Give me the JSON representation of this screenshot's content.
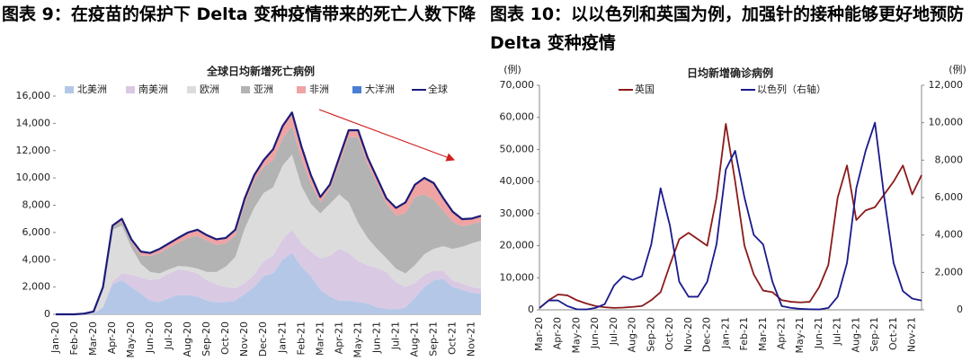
{
  "chart_data": [
    {
      "type": "stacked_area",
      "heading": "图表 9：在疫苗的保护下 Delta 变种疫情带来的死亡人数下降",
      "title": "全球日均新增死亡病例",
      "categories": [
        "Jan-20",
        null,
        "Feb-20",
        null,
        "Mar-20",
        null,
        "Apr-20",
        null,
        "May-20",
        null,
        "Jun-20",
        null,
        "Jul-20",
        null,
        "Aug-20",
        null,
        "Sep-20",
        null,
        "Oct-20",
        null,
        "Nov-20",
        null,
        "Dec-20",
        null,
        "Jan-21",
        null,
        "Feb-21",
        null,
        "Mar-21",
        null,
        "Apr-21",
        null,
        "May-21",
        null,
        "Jun-21",
        null,
        "Jul-21",
        null,
        "Aug-21",
        null,
        "Sep-21",
        null,
        "Oct-21",
        null,
        "Nov-21",
        null
      ],
      "ylim": [
        0,
        16000
      ],
      "yticks": [
        0,
        {
          "value": 2000,
          "label": "2,000"
        },
        {
          "value": 4000,
          "label": "4,000"
        },
        {
          "value": 6000,
          "label": "6,000"
        },
        {
          "value": 8000,
          "label": "8,000"
        },
        {
          "value": 10000,
          "label": "10,000"
        },
        {
          "value": 12000,
          "label": "12,000"
        },
        {
          "value": 14000,
          "label": "14,000"
        },
        {
          "value": 16000,
          "label": "16,000"
        }
      ],
      "series": [
        {
          "name": "北美洲",
          "kind": "area",
          "color": "#b4c7e7",
          "values": [
            0,
            0,
            0,
            0,
            50,
            500,
            2200,
            2500,
            2000,
            1500,
            1000,
            900,
            1200,
            1400,
            1400,
            1300,
            1000,
            900,
            900,
            1000,
            1500,
            2000,
            2800,
            3000,
            4000,
            4500,
            3500,
            2800,
            1800,
            1300,
            1000,
            1000,
            900,
            800,
            500,
            400,
            350,
            500,
            1200,
            2000,
            2500,
            2600,
            2000,
            1800,
            1600,
            1500
          ]
        },
        {
          "name": "南美洲",
          "kind": "area",
          "color": "#d9c9e3",
          "values": [
            0,
            0,
            0,
            0,
            0,
            50,
            200,
            500,
            900,
            1200,
            1500,
            1700,
            1800,
            1900,
            1800,
            1700,
            1500,
            1300,
            1100,
            900,
            800,
            900,
            1100,
            1300,
            1500,
            1700,
            1700,
            1800,
            2300,
            3000,
            3800,
            3500,
            3000,
            2800,
            2900,
            2700,
            2000,
            1500,
            1100,
            900,
            700,
            600,
            500,
            450,
            400,
            400
          ]
        },
        {
          "name": "欧洲",
          "kind": "area",
          "color": "#dcdcdc",
          "values": [
            0,
            0,
            0,
            20,
            140,
            1400,
            3800,
            3500,
            2000,
            1000,
            600,
            400,
            300,
            250,
            300,
            350,
            600,
            900,
            1500,
            2300,
            4000,
            4900,
            5000,
            5000,
            5400,
            5500,
            4200,
            3500,
            3300,
            3800,
            4000,
            3700,
            2800,
            2000,
            1400,
            1000,
            1000,
            1000,
            1300,
            1500,
            1600,
            1800,
            2300,
            2700,
            3200,
            3500
          ]
        },
        {
          "name": "亚洲",
          "kind": "area",
          "color": "#b3b3b3",
          "values": [
            0,
            0,
            0,
            30,
            10,
            50,
            200,
            300,
            400,
            600,
            1200,
            1500,
            1600,
            1700,
            2100,
            2400,
            2300,
            2000,
            1700,
            1600,
            1800,
            2000,
            1900,
            2000,
            2000,
            2100,
            2000,
            1500,
            800,
            1100,
            2200,
            4800,
            6300,
            5400,
            4800,
            4000,
            3900,
            4400,
            5000,
            4400,
            3600,
            2600,
            2000,
            1500,
            1400,
            1400
          ]
        },
        {
          "name": "非洲",
          "kind": "area",
          "color": "#f0a3a3",
          "values": [
            0,
            0,
            0,
            0,
            0,
            0,
            100,
            200,
            200,
            300,
            200,
            300,
            300,
            350,
            400,
            450,
            400,
            400,
            400,
            400,
            400,
            400,
            500,
            800,
            900,
            1000,
            900,
            600,
            400,
            300,
            500,
            500,
            500,
            500,
            400,
            400,
            550,
            800,
            900,
            1200,
            1200,
            900,
            700,
            500,
            400,
            400
          ]
        },
        {
          "name": "大洋洲",
          "kind": "area",
          "color": "#4a7fd4",
          "values": [
            0,
            0,
            0,
            0,
            0,
            0,
            0,
            0,
            0,
            0,
            0,
            0,
            10,
            20,
            0,
            0,
            0,
            0,
            0,
            0,
            0,
            0,
            0,
            0,
            0,
            0,
            0,
            0,
            0,
            0,
            0,
            0,
            0,
            0,
            0,
            0,
            0,
            0,
            0,
            0,
            20,
            30,
            30,
            30,
            20,
            20
          ]
        },
        {
          "name": "全球",
          "kind": "line",
          "color": "#1c1c78",
          "values": [
            0,
            0,
            0,
            50,
            200,
            2000,
            6500,
            7000,
            5500,
            4600,
            4500,
            4800,
            5210,
            5620,
            6000,
            6200,
            5800,
            5500,
            5600,
            6200,
            8500,
            10200,
            11300,
            12100,
            13800,
            14800,
            12300,
            10200,
            8600,
            9500,
            11500,
            13500,
            13500,
            11500,
            10000,
            8500,
            7800,
            8200,
            9500,
            10000,
            9620,
            8530,
            7530,
            6980,
            7020,
            7220
          ]
        }
      ]
    },
    {
      "type": "line",
      "heading": "图表 10：以以色列和英国为例，加强针的接种能够更好地预防 Delta 变种疫情",
      "title": "日均新增确诊病例",
      "y_unit": "(例)",
      "y2_unit": "(例)",
      "categories": [
        "Mar-20",
        null,
        "Apr-20",
        null,
        "May-20",
        null,
        "Jun-20",
        null,
        "Jul-20",
        null,
        "Aug-20",
        null,
        "Sep-20",
        null,
        "Oct-20",
        null,
        "Nov-20",
        null,
        "Dec-20",
        null,
        "Jan-21",
        null,
        "Feb-21",
        null,
        "Mar-21",
        null,
        "Apr-21",
        null,
        "May-21",
        null,
        "Jun-21",
        null,
        "Jul-21",
        null,
        "Aug-21",
        null,
        "Sep-21",
        null,
        "Oct-21",
        null,
        "Nov-21",
        null
      ],
      "ylim": [
        0,
        70000
      ],
      "yticks": [
        0,
        {
          "value": 10000,
          "label": "10,000"
        },
        {
          "value": 20000,
          "label": "20,000"
        },
        {
          "value": 30000,
          "label": "30,000"
        },
        {
          "value": 40000,
          "label": "40,000"
        },
        {
          "value": 50000,
          "label": "50,000"
        },
        {
          "value": 60000,
          "label": "60,000"
        },
        {
          "value": 70000,
          "label": "70,000"
        }
      ],
      "y2lim": [
        0,
        12000
      ],
      "y2ticks": [
        0,
        {
          "value": 2000,
          "label": "2,000"
        },
        {
          "value": 4000,
          "label": "4,000"
        },
        {
          "value": 6000,
          "label": "6,000"
        },
        {
          "value": 8000,
          "label": "8,000"
        },
        {
          "value": 10000,
          "label": "10,000"
        },
        {
          "value": 12000,
          "label": "12,000"
        }
      ],
      "series": [
        {
          "name": "英国",
          "kind": "line",
          "color": "#8b1a1a",
          "values": [
            500,
            3000,
            4800,
            4500,
            3000,
            2000,
            1200,
            800,
            600,
            700,
            900,
            1200,
            3000,
            5500,
            14000,
            22000,
            24000,
            22000,
            20000,
            35000,
            58000,
            40000,
            20000,
            11000,
            6000,
            5500,
            3000,
            2500,
            2300,
            2500,
            7000,
            14000,
            35000,
            45000,
            28000,
            31000,
            32000,
            36000,
            40000,
            45000,
            36000,
            42000
          ]
        },
        {
          "name": "以色列（右轴）",
          "kind": "line",
          "axis": "y2",
          "color": "#1a1a8c",
          "values": [
            100,
            500,
            500,
            200,
            30,
            20,
            100,
            300,
            1300,
            1800,
            1600,
            1800,
            3500,
            6500,
            4500,
            1500,
            700,
            700,
            1500,
            3500,
            7500,
            8500,
            6000,
            4000,
            3500,
            1500,
            200,
            100,
            50,
            30,
            20,
            100,
            700,
            2500,
            6500,
            8500,
            10000,
            6000,
            2500,
            1000,
            600,
            500
          ]
        }
      ]
    }
  ]
}
